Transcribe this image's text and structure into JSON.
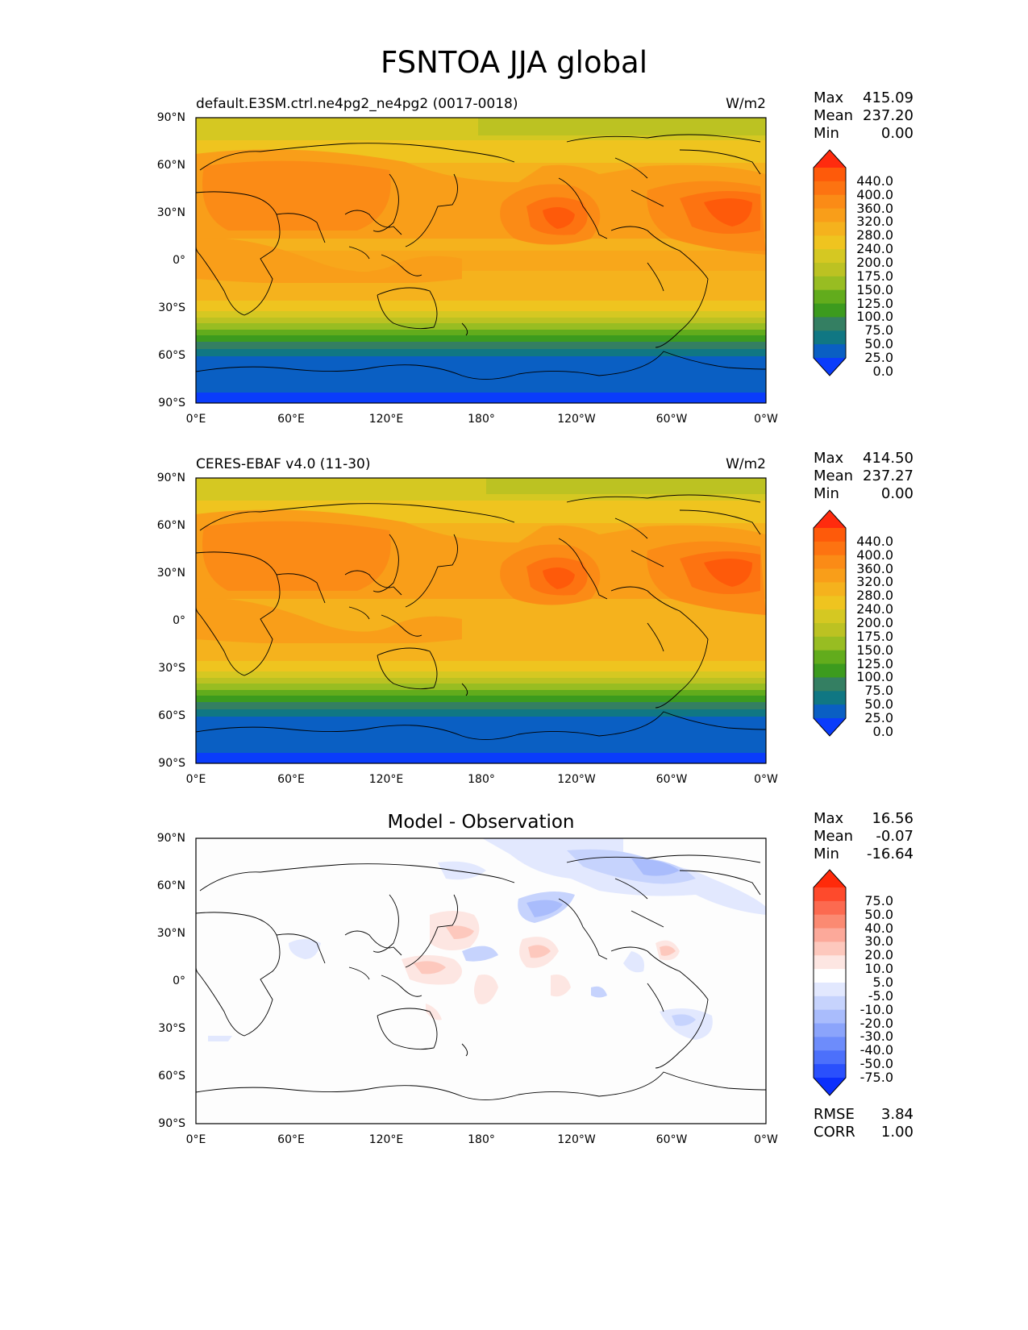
{
  "figure": {
    "title": "FSNTOA JJA global"
  },
  "axes": {
    "lat_ticks": [
      "90°N",
      "60°N",
      "30°N",
      "0°",
      "30°S",
      "60°S",
      "90°S"
    ],
    "lon_ticks": [
      "0°E",
      "60°E",
      "120°E",
      "180°",
      "120°W",
      "60°W",
      "0°W"
    ]
  },
  "panels": [
    {
      "title": "default.E3SM.ctrl.ne4pg2_ne4pg2 (0017-0018)",
      "units": "W/m2",
      "stats": {
        "max_label": "Max",
        "max": "415.09",
        "mean_label": "Mean",
        "mean": "237.20",
        "min_label": "Min",
        "min": "0.00"
      },
      "colorbar": {
        "labels": [
          "440.0",
          "400.0",
          "360.0",
          "320.0",
          "280.0",
          "240.0",
          "200.0",
          "175.0",
          "150.0",
          "125.0",
          "100.0",
          "75.0",
          "50.0",
          "25.0",
          "0.0"
        ],
        "colors": [
          "#ff2b0e",
          "#fe5a0a",
          "#fd7311",
          "#fb8b16",
          "#f99e19",
          "#f5b21d",
          "#efc41f",
          "#d5c822",
          "#bcc222",
          "#98bd22",
          "#62ac1c",
          "#3c9b1e",
          "#347f62",
          "#107783",
          "#0a5fc3",
          "#0a3cfb"
        ]
      }
    },
    {
      "title": "CERES-EBAF v4.0 (11-30)",
      "units": "W/m2",
      "stats": {
        "max_label": "Max",
        "max": "414.50",
        "mean_label": "Mean",
        "mean": "237.27",
        "min_label": "Min",
        "min": "0.00"
      },
      "colorbar": {
        "labels": [
          "440.0",
          "400.0",
          "360.0",
          "320.0",
          "280.0",
          "240.0",
          "200.0",
          "175.0",
          "150.0",
          "125.0",
          "100.0",
          "75.0",
          "50.0",
          "25.0",
          "0.0"
        ],
        "colors": [
          "#ff2b0e",
          "#fe5a0a",
          "#fd7311",
          "#fb8b16",
          "#f99e19",
          "#f5b21d",
          "#efc41f",
          "#d5c822",
          "#bcc222",
          "#98bd22",
          "#62ac1c",
          "#3c9b1e",
          "#347f62",
          "#107783",
          "#0a5fc3",
          "#0a3cfb"
        ]
      }
    },
    {
      "title": "Model - Observation",
      "units": "",
      "stats": {
        "max_label": "Max",
        "max": "16.56",
        "mean_label": "Mean",
        "mean": "-0.07",
        "min_label": "Min",
        "min": "-16.64"
      },
      "metrics": {
        "rmse_label": "RMSE",
        "rmse": "3.84",
        "corr_label": "CORR",
        "corr": "1.00"
      },
      "colorbar": {
        "labels": [
          "75.0",
          "50.0",
          "40.0",
          "30.0",
          "20.0",
          "10.0",
          "5.0",
          "-5.0",
          "-10.0",
          "-20.0",
          "-30.0",
          "-40.0",
          "-50.0",
          "-75.0"
        ],
        "colors": [
          "#ff2a0a",
          "#fe4a2c",
          "#fc6a50",
          "#fb8a72",
          "#fca99a",
          "#fdc8bd",
          "#fde6e2",
          "#ffffff",
          "#e2e8fe",
          "#c6d3fd",
          "#a9bcfc",
          "#8ba4fb",
          "#6d8cfb",
          "#4c70fb",
          "#2a50fc",
          "#0b2ffc"
        ]
      }
    }
  ]
}
